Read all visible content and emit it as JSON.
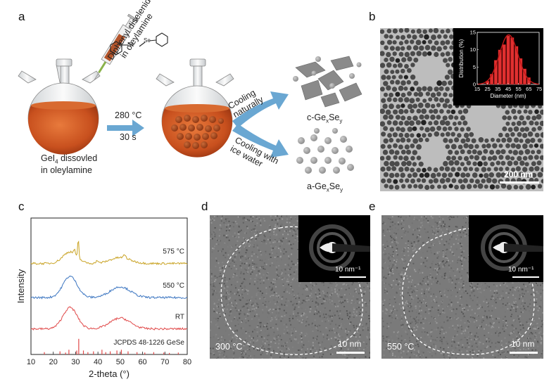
{
  "panels": {
    "a": "a",
    "b": "b",
    "c": "c",
    "d": "d",
    "e": "e"
  },
  "panel_a": {
    "reagent_line1": "Diphenyl diselenide",
    "reagent_line2": "in oleylamine",
    "se1": "Se",
    "se2": "Se",
    "condition_temp": "280 °C",
    "condition_time": "30 s",
    "precursor_line1": "GeI",
    "precursor_sub": "4",
    "precursor_after": " dissovled",
    "precursor_line2": "in oleylamine",
    "path_top_line1": "Cooling",
    "path_top_line2": "naturally",
    "path_bottom_line1": "Cooling with",
    "path_bottom_line2": "ice water",
    "product_crystal_pre": "c-Ge",
    "product_crystal_x": "x",
    "product_crystal_mid": "Se",
    "product_crystal_y": "y",
    "product_amorphous_pre": "a-Ge",
    "product_amorphous_x": "x",
    "product_amorphous_mid": "Se",
    "product_amorphous_y": "y",
    "colors": {
      "flask_liquid": "#c8501e",
      "arrow": "#6aa7d2"
    }
  },
  "panel_b": {
    "scale_label": "200 nm"
  },
  "panel_d": {
    "scale_label": "10 nm",
    "temp_label": "300 °C",
    "inset_scale": "10 nm⁻¹"
  },
  "panel_e": {
    "scale_label": "10 nm",
    "temp_label": "550 °C",
    "inset_scale": "10 nm⁻¹"
  },
  "chart_data": [
    {
      "type": "bar",
      "panel": "b-inset",
      "xlabel": "Diameter (nm)",
      "ylabel": "Distribution (%)",
      "x_ticks": [
        "15",
        "25",
        "35",
        "45",
        "55",
        "65",
        "75"
      ],
      "y_ticks": [
        "0",
        "5",
        "10",
        "15"
      ],
      "xlim": [
        15,
        75
      ],
      "ylim": [
        0,
        15
      ],
      "bin_centers": [
        25,
        29,
        33,
        37,
        41,
        45,
        49,
        53,
        57,
        61,
        65
      ],
      "values": [
        1.0,
        3.0,
        7.0,
        10.0,
        11.5,
        14.0,
        13.5,
        11.0,
        7.5,
        4.5,
        2.0
      ],
      "fit_curve": "gaussian",
      "colors": {
        "bars": "#e03030",
        "fit": "#c01818",
        "background": "#000000",
        "axes": "#ffffff"
      }
    },
    {
      "type": "line",
      "panel": "c",
      "xlabel": "2-theta (°)",
      "ylabel": "Intensity",
      "x_ticks": [
        "10",
        "20",
        "30",
        "40",
        "50",
        "60",
        "70",
        "80"
      ],
      "xlim": [
        10,
        80
      ],
      "series": [
        {
          "name": "575 °C",
          "color": "#c9a324",
          "offset": 3.2
        },
        {
          "name": "550 °C",
          "color": "#3a74c0",
          "offset": 2.0
        },
        {
          "name": "RT",
          "color": "#e04848",
          "offset": 0.9
        }
      ],
      "reference": {
        "name": "JCPDS 48-1226 GeSe",
        "color": "#e04848",
        "peaks": [
          [
            16.0,
            0.15
          ],
          [
            23.0,
            0.2
          ],
          [
            25.5,
            0.12
          ],
          [
            27.0,
            0.3
          ],
          [
            30.5,
            0.25
          ],
          [
            31.4,
            1.0
          ],
          [
            33.5,
            0.25
          ],
          [
            35.5,
            0.15
          ],
          [
            38.0,
            0.2
          ],
          [
            41.8,
            0.3
          ],
          [
            43.5,
            0.15
          ],
          [
            45.5,
            0.2
          ],
          [
            48.5,
            0.25
          ],
          [
            50.5,
            0.3
          ],
          [
            53.5,
            0.2
          ],
          [
            57.5,
            0.15
          ],
          [
            61.0,
            0.12
          ],
          [
            65.0,
            0.15
          ],
          [
            69.5,
            0.12
          ],
          [
            72.0,
            0.1
          ],
          [
            76.0,
            0.12
          ]
        ]
      }
    }
  ]
}
